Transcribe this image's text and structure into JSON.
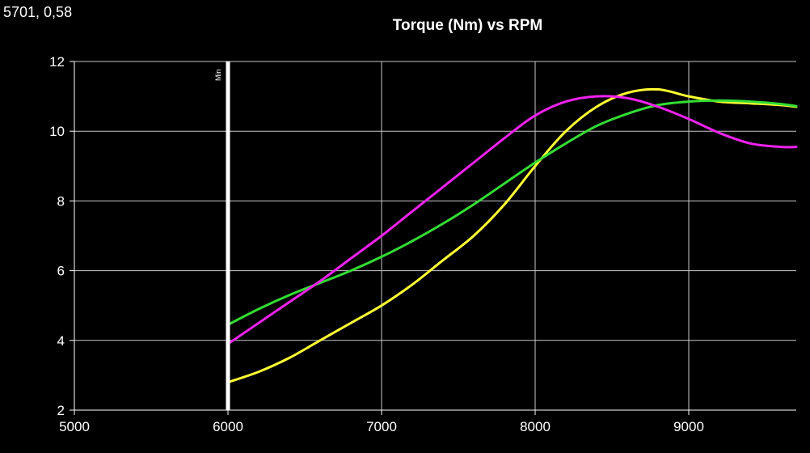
{
  "readout": "5701, 0,58",
  "chart_data": {
    "type": "line",
    "title": "Torque (Nm) vs RPM",
    "xlabel": "",
    "ylabel": "",
    "xlim": [
      5000,
      9700
    ],
    "ylim": [
      2,
      12
    ],
    "x_ticks": [
      5000,
      6000,
      7000,
      8000,
      9000
    ],
    "y_ticks": [
      2,
      4,
      6,
      8,
      10,
      12
    ],
    "grid": true,
    "legend": "none",
    "colors": {
      "background": "#000000",
      "grid": "#c8c8c8",
      "axis": "#ffffff",
      "marker": "#ffffff"
    },
    "marker": {
      "x": 6000,
      "label": "Min",
      "color": "#ffffff"
    },
    "series": [
      {
        "color": "#ffff33",
        "x": [
          6000,
          6200,
          6400,
          6600,
          6800,
          7000,
          7200,
          7400,
          7600,
          7800,
          8000,
          8200,
          8400,
          8600,
          8800,
          9000,
          9200,
          9400,
          9600,
          9700
        ],
        "y": [
          2.8,
          3.1,
          3.5,
          4.0,
          4.5,
          5.0,
          5.6,
          6.3,
          7.0,
          7.9,
          9.0,
          10.0,
          10.7,
          11.1,
          11.2,
          11.0,
          10.85,
          10.8,
          10.75,
          10.7
        ]
      },
      {
        "color": "#33dd33",
        "x": [
          6000,
          6200,
          6400,
          6600,
          6800,
          7000,
          7200,
          7400,
          7600,
          7800,
          8000,
          8200,
          8400,
          8600,
          8800,
          9000,
          9200,
          9400,
          9600,
          9700
        ],
        "y": [
          4.45,
          4.9,
          5.3,
          5.65,
          6.0,
          6.4,
          6.85,
          7.35,
          7.9,
          8.5,
          9.1,
          9.65,
          10.15,
          10.5,
          10.75,
          10.85,
          10.88,
          10.85,
          10.78,
          10.72
        ]
      },
      {
        "color": "#ee22ee",
        "x": [
          6000,
          6200,
          6400,
          6600,
          6800,
          7000,
          7200,
          7400,
          7600,
          7800,
          8000,
          8200,
          8400,
          8600,
          8800,
          9000,
          9200,
          9400,
          9600,
          9700
        ],
        "y": [
          3.9,
          4.5,
          5.1,
          5.7,
          6.35,
          7.0,
          7.7,
          8.4,
          9.1,
          9.8,
          10.45,
          10.85,
          11.0,
          10.95,
          10.7,
          10.35,
          9.95,
          9.65,
          9.55,
          9.55
        ]
      }
    ]
  }
}
